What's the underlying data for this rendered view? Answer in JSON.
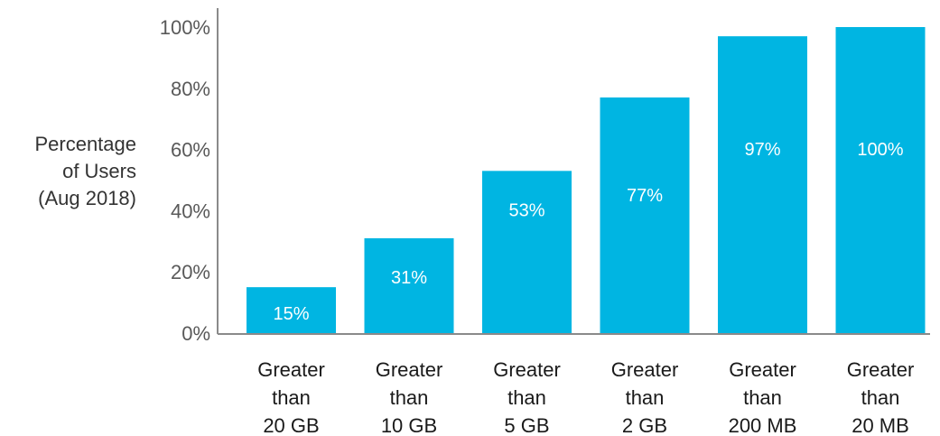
{
  "chart_data": {
    "type": "bar",
    "ylabel": [
      "Percentage",
      "of Users",
      "(Aug 2018)"
    ],
    "categories": [
      [
        "Greater",
        "than",
        "20 GB"
      ],
      [
        "Greater",
        "than",
        "10 GB"
      ],
      [
        "Greater",
        "than",
        "5 GB"
      ],
      [
        "Greater",
        "than",
        "2 GB"
      ],
      [
        "Greater",
        "than",
        "200 MB"
      ],
      [
        "Greater",
        "than",
        "20 MB"
      ]
    ],
    "values": [
      15,
      31,
      53,
      77,
      97,
      100
    ],
    "data_labels": [
      "15%",
      "31%",
      "53%",
      "77%",
      "97%",
      "100%"
    ],
    "yticks": [
      "0%",
      "20%",
      "40%",
      "60%",
      "80%",
      "100%"
    ],
    "ylim": [
      0,
      100
    ],
    "grid": false,
    "legend": "none",
    "bar_color": "#00B5E2",
    "axis_color": "#8a8a8a"
  }
}
